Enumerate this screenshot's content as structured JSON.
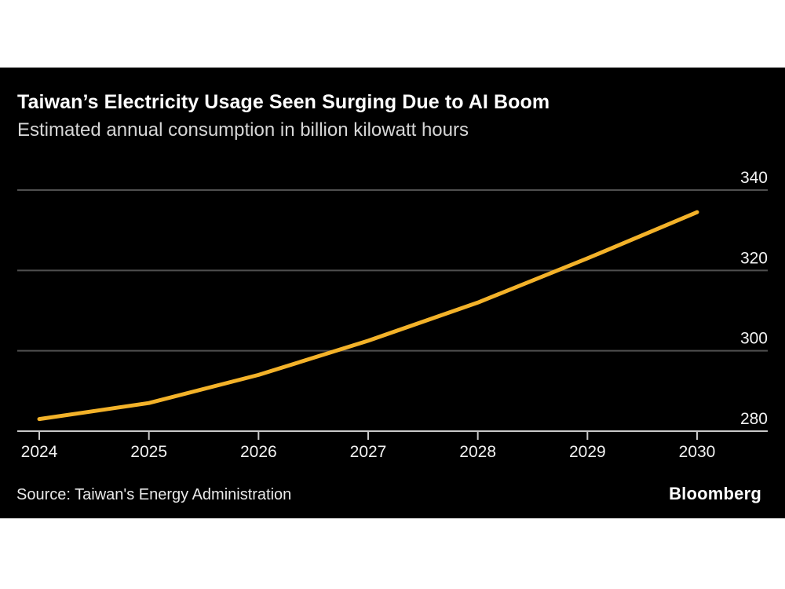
{
  "header": {
    "title": "Taiwan’s Electricity Usage Seen Surging Due to AI Boom",
    "subtitle": "Estimated annual consumption in billion kilowatt hours"
  },
  "chart_data": {
    "type": "line",
    "title": "Taiwan’s Electricity Usage Seen Surging Due to AI Boom",
    "subtitle": "Estimated annual consumption in billion kilowatt hours",
    "xlabel": "",
    "ylabel": "billion kilowatt hours",
    "x": [
      2024,
      2025,
      2026,
      2027,
      2028,
      2029,
      2030
    ],
    "x_labels": [
      "2024",
      "2025",
      "2026",
      "2027",
      "2028",
      "2029",
      "2030"
    ],
    "series": [
      {
        "name": "Estimated annual consumption",
        "values": [
          283,
          287,
          294,
          302.5,
          312,
          323,
          334.5
        ]
      }
    ],
    "ylim": [
      280,
      340
    ],
    "yticks": [
      280,
      300,
      320,
      340
    ],
    "ytick_labels": [
      "280",
      "300",
      "320",
      "340"
    ],
    "legend": "none",
    "grid": "horizontal",
    "colors": {
      "line": "#F3B229",
      "grid": "#4F4F4F",
      "axis": "#C9C9C9",
      "tick_label": "#F2F2F2",
      "background": "#000000"
    }
  },
  "footer": {
    "source": "Source: Taiwan's Energy Administration",
    "brand": "Bloomberg"
  }
}
